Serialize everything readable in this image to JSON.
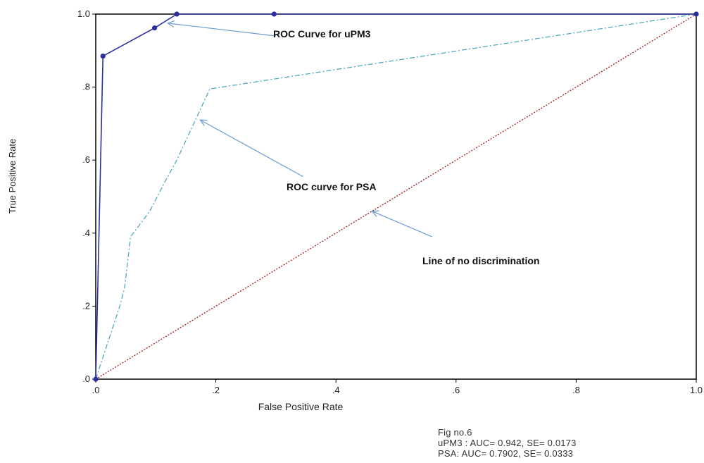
{
  "chart_data": {
    "type": "line",
    "xlabel": "False Positive Rate",
    "ylabel": "True Positive Rate",
    "xlim": [
      0,
      1
    ],
    "ylim": [
      0,
      1
    ],
    "x_ticks": [
      0,
      0.2,
      0.4,
      0.6,
      0.8,
      1.0
    ],
    "x_tick_labels": [
      ".0",
      ".2",
      ".4",
      ".6",
      ".8",
      "1.0"
    ],
    "y_ticks": [
      0,
      0.2,
      0.4,
      0.6,
      0.8,
      1.0
    ],
    "y_tick_labels": [
      ".0",
      ".2",
      ".4",
      ".6",
      ".8",
      "1.0"
    ],
    "grid": false,
    "legend": "none",
    "series": [
      {
        "name": "ROC Curve for uPM3",
        "color": "#2b2f9c",
        "style": "solid",
        "markers": true,
        "points": [
          [
            0,
            0
          ],
          [
            0.012,
            0.885
          ],
          [
            0.098,
            0.962
          ],
          [
            0.135,
            1.0
          ],
          [
            0.297,
            1.0
          ],
          [
            1.0,
            1.0
          ]
        ]
      },
      {
        "name": "ROC curve for PSA",
        "color": "#4fa9bf",
        "style": "dash-dot",
        "markers": false,
        "points": [
          [
            0,
            0
          ],
          [
            0.04,
            0.2
          ],
          [
            0.048,
            0.25
          ],
          [
            0.058,
            0.39
          ],
          [
            0.09,
            0.46
          ],
          [
            0.115,
            0.54
          ],
          [
            0.135,
            0.6
          ],
          [
            0.19,
            0.795
          ],
          [
            1.0,
            1.0
          ]
        ]
      },
      {
        "name": "Line of no discrimination",
        "color": "#a11a1a",
        "style": "dotted",
        "markers": false,
        "points": [
          [
            0,
            0
          ],
          [
            1,
            1
          ]
        ]
      }
    ],
    "annotations": [
      {
        "text": "ROC Curve for uPM3",
        "target": [
          0.12,
          0.975
        ],
        "label_at": [
          0.3,
          0.94
        ]
      },
      {
        "text": "ROC curve for PSA",
        "target": [
          0.174,
          0.71
        ],
        "label_at": [
          0.345,
          0.555
        ]
      },
      {
        "text": "Line of no discrimination",
        "target": [
          0.46,
          0.46
        ],
        "label_at": [
          0.56,
          0.39
        ]
      }
    ]
  },
  "caption": {
    "line1": "Fig no.6",
    "line2": "uPM3 : AUC= 0.942, SE= 0.0173",
    "line3": "PSA: AUC= 0.7902, SE= 0.0333"
  }
}
